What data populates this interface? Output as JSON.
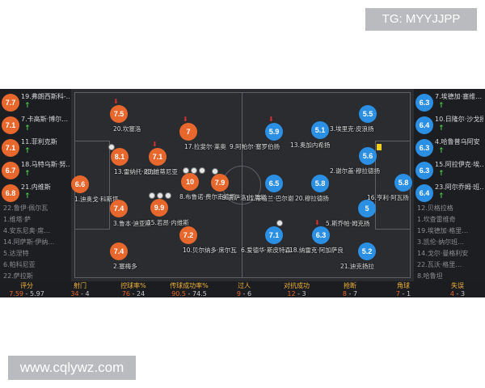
{
  "watermarks": {
    "top": "TG: MYYJJPP",
    "bottom": "www.cqlywz.com"
  },
  "colors": {
    "home": "#e8672c",
    "away": "#2b8fe3",
    "stat_label": "#f0b03a",
    "pitch": "#2a2c30"
  },
  "home_list": [
    {
      "rating": "7.7",
      "name": "19.弗朗西斯科-…"
    },
    {
      "rating": "7.1",
      "name": "7.卡高斯·博尔…"
    },
    {
      "rating": "7.1",
      "name": "11.菲利克斯"
    },
    {
      "rating": "6.7",
      "name": "18.马特乌斯·努…"
    },
    {
      "rating": "6.8",
      "name": "21.内维斯"
    }
  ],
  "home_subs": [
    "22.鲁伊·佩尔瓦",
    "1.维塔·萨",
    "4.安东尼奥·席…",
    "14.阿萨斯·伊纳…",
    "5.达涅特",
    "6.帕科尼亚",
    "22.萨拉斯"
  ],
  "away_list": [
    {
      "rating": "6.3",
      "name": "7.埃德加·塞维…"
    },
    {
      "rating": "6.4",
      "name": "10.日隆尔·沙戈扬"
    },
    {
      "rating": "6.3",
      "name": "4.哈鲁普乌阿安"
    },
    {
      "rating": "6.3",
      "name": "15.阿拉伊克·埃…"
    },
    {
      "rating": "6.4",
      "name": "23.阿尔乔姆·班…"
    }
  ],
  "away_subs": [
    "12.贝格拉格",
    "1.坎查雷维奇",
    "19.埃德加·格里…",
    "3.凯伦·纳尔班…",
    "14.戈尔·曼格利安",
    "22.瓦沃·格里…",
    "8.哈鲁坦"
  ],
  "home_players": [
    {
      "rating": "6.6",
      "name": "1.迪奥戈·科斯塔"
    },
    {
      "rating": "8.1",
      "name": "13.雷纳托·维加"
    },
    {
      "rating": "7.1",
      "name": "23.维蒂尼亚"
    },
    {
      "rating": "7.5",
      "name": "20.坎塞洛"
    },
    {
      "rating": "7",
      "name": "17.拉斐尔·莱奥"
    },
    {
      "rating": "7.4",
      "name": "3.鲁本·迪亚斯"
    },
    {
      "rating": "9.9",
      "name": "15.若昂·内维斯"
    },
    {
      "rating": "10",
      "name": "8.布鲁诺·费尔南德斯"
    },
    {
      "rating": "7.9",
      "name": "9.贡萨洛·拉莫斯"
    },
    {
      "rating": "7.2",
      "name": "10.贝尔纳多·席尔瓦"
    },
    {
      "rating": "7.4",
      "name": "2.塞梅多"
    }
  ],
  "away_players": [
    {
      "rating": "5.9",
      "name": "9.阿帕尔·塞罗伯扬"
    },
    {
      "rating": "5.1",
      "name": "13.奥加内希扬"
    },
    {
      "rating": "5.5",
      "name": "3.埃里克·皮浪扬"
    },
    {
      "rating": "5.6",
      "name": "2.谢尔盖·穆拉德扬"
    },
    {
      "rating": "6.5",
      "name": "11.蒂格兰·巴尔谢"
    },
    {
      "rating": "5.8",
      "name": "20.穆拉德扬"
    },
    {
      "rating": "5.8",
      "name": "16.亨利·阿瓦扬"
    },
    {
      "rating": "5",
      "name": "5.斯乔帕·姆克扬"
    },
    {
      "rating": "7.1",
      "name": "6.爱德华·斯皮特森"
    },
    {
      "rating": "6.3",
      "name": "18.纳雷克·阿加萨良"
    },
    {
      "rating": "5.2",
      "name": "21.迪克扬拉"
    }
  ],
  "stats": [
    {
      "label": "评分",
      "home": "7.59",
      "away": "5.97"
    },
    {
      "label": "射门",
      "home": "34",
      "away": "4"
    },
    {
      "label": "控球率%",
      "home": "76",
      "away": "24"
    },
    {
      "label": "传球成功率%",
      "home": "90.5",
      "away": "74.5"
    },
    {
      "label": "过人",
      "home": "9",
      "away": "6"
    },
    {
      "label": "对抗成功",
      "home": "12",
      "away": "3"
    },
    {
      "label": "抢断",
      "home": "8",
      "away": "7"
    },
    {
      "label": "角球",
      "home": "7",
      "away": "1"
    },
    {
      "label": "失误",
      "home": "4",
      "away": "3"
    }
  ]
}
